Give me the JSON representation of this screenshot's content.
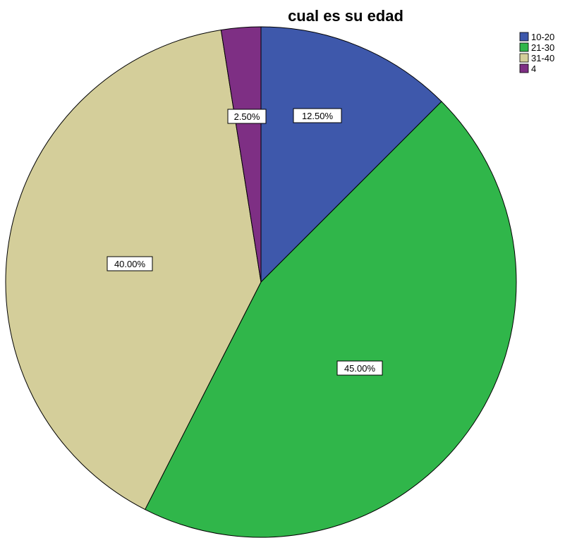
{
  "chart_data": {
    "type": "pie",
    "title": "cual es su edad",
    "categories": [
      "10-20",
      "21-30",
      "31-40",
      "4"
    ],
    "values": [
      12.5,
      45.0,
      40.0,
      2.5
    ],
    "value_labels": [
      "12.50%",
      "45.00%",
      "40.00%",
      "2.50%"
    ],
    "colors": [
      "#3e58ab",
      "#30b64a",
      "#d4ce9a",
      "#7e2f84"
    ],
    "legend": {
      "placement": "top-right",
      "entries": [
        "10-20",
        "21-30",
        "31-40",
        "4"
      ]
    },
    "start_angle": "12 o'clock",
    "direction": "clockwise"
  }
}
